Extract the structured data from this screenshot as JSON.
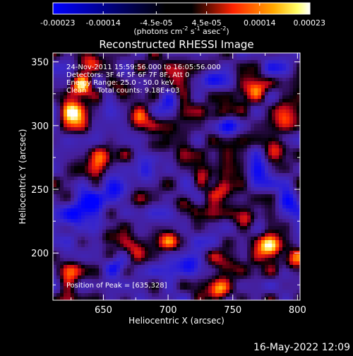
{
  "colorbar": {
    "tick_labels": [
      "-0.00023",
      "-0.00014",
      "-4.5e-05",
      "4.5e-05",
      "0.00014",
      "0.00023"
    ],
    "tick_values": [
      -0.00023,
      -0.00014,
      -4.5e-05,
      4.5e-05,
      0.00014,
      0.00023
    ],
    "range": [
      -0.00023,
      0.00023
    ],
    "units_html": "(photons cm<tspan dy='-5' font-size='8'>-2</tspan><tspan dy='5'> s</tspan><tspan dy='-5' font-size='8'>-1</tspan><tspan dy='5'> asec</tspan><tspan dy='-5' font-size='8'>-2</tspan><tspan dy='5'>)</tspan>",
    "units_text": "(photons cm-2 s-1 asec-2)"
  },
  "chart_data": {
    "type": "heatmap",
    "title": "Reconstructed RHESSI Image",
    "xlabel": "Heliocentric X (arcsec)",
    "ylabel": "Heliocentric Y (arcsec)",
    "xlim": [
      611,
      802
    ],
    "ylim": [
      163,
      357
    ],
    "x_ticks": [
      650,
      700,
      750,
      800
    ],
    "y_ticks": [
      200,
      250,
      300,
      350
    ],
    "x_tick_labels": [
      "650",
      "700",
      "750",
      "800"
    ],
    "y_tick_labels": [
      "200",
      "250",
      "300",
      "350"
    ],
    "colormap": [
      "#0000ff",
      "#000000",
      "#ff0000",
      "#ffff00",
      "#ffffff"
    ],
    "peak": [
      635,
      328
    ],
    "hotspots": [
      {
        "x": 628,
        "y": 310,
        "v": 0.95
      },
      {
        "x": 633,
        "y": 330,
        "v": 0.85
      },
      {
        "x": 640,
        "y": 350,
        "v": 0.6
      },
      {
        "x": 665,
        "y": 325,
        "v": 0.7
      },
      {
        "x": 678,
        "y": 305,
        "v": 0.75
      },
      {
        "x": 650,
        "y": 275,
        "v": 0.6
      },
      {
        "x": 633,
        "y": 265,
        "v": 0.55
      },
      {
        "x": 690,
        "y": 285,
        "v": 0.5
      },
      {
        "x": 712,
        "y": 235,
        "v": 0.55
      },
      {
        "x": 725,
        "y": 260,
        "v": 0.5
      },
      {
        "x": 740,
        "y": 250,
        "v": 0.55
      },
      {
        "x": 768,
        "y": 330,
        "v": 0.7
      },
      {
        "x": 790,
        "y": 310,
        "v": 0.75
      },
      {
        "x": 785,
        "y": 280,
        "v": 0.55
      },
      {
        "x": 760,
        "y": 225,
        "v": 0.6
      },
      {
        "x": 778,
        "y": 205,
        "v": 0.95
      },
      {
        "x": 795,
        "y": 195,
        "v": 0.7
      },
      {
        "x": 745,
        "y": 195,
        "v": 0.6
      },
      {
        "x": 738,
        "y": 172,
        "v": 1.0
      },
      {
        "x": 700,
        "y": 210,
        "v": 0.5
      },
      {
        "x": 675,
        "y": 200,
        "v": 0.6
      },
      {
        "x": 655,
        "y": 215,
        "v": 0.5
      },
      {
        "x": 625,
        "y": 185,
        "v": 0.55
      },
      {
        "x": 705,
        "y": 335,
        "v": 0.45
      },
      {
        "x": 740,
        "y": 305,
        "v": 0.45
      }
    ],
    "coldspots": [
      {
        "x": 715,
        "y": 255,
        "v": -0.8
      },
      {
        "x": 745,
        "y": 300,
        "v": -0.7
      },
      {
        "x": 640,
        "y": 240,
        "v": -0.75
      },
      {
        "x": 625,
        "y": 230,
        "v": -0.7
      },
      {
        "x": 685,
        "y": 265,
        "v": -0.7
      },
      {
        "x": 770,
        "y": 265,
        "v": -0.65
      },
      {
        "x": 660,
        "y": 190,
        "v": -0.6
      },
      {
        "x": 715,
        "y": 190,
        "v": -0.7
      },
      {
        "x": 660,
        "y": 250,
        "v": -0.55
      },
      {
        "x": 795,
        "y": 240,
        "v": -0.6
      },
      {
        "x": 700,
        "y": 315,
        "v": -0.5
      },
      {
        "x": 735,
        "y": 340,
        "v": -0.55
      },
      {
        "x": 780,
        "y": 345,
        "v": -0.4
      }
    ]
  },
  "info": {
    "time_range": "24-Nov-2011 15:59:56.000 to 16:05:56.000",
    "detectors": "Detectors: 3F 4F 5F 6F 7F 8F, Att 0",
    "energy_range": "Energy Range: 25.0 - 50.0 keV",
    "clean_counts": "Clean     Total counts: 9.18E+03",
    "peak_position": "Position of Peak = [635,328]"
  },
  "timestamp": "16-May-2022 12:09"
}
